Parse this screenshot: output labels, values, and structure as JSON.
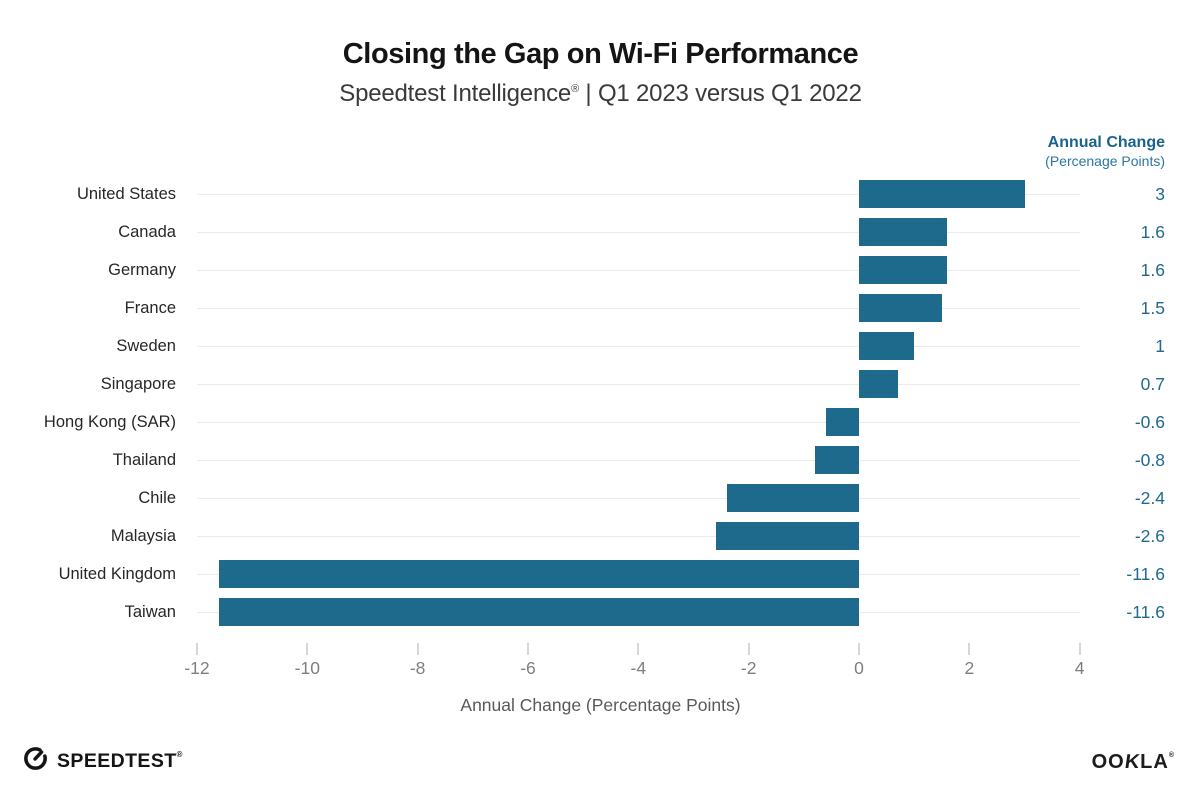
{
  "title": "Closing the Gap on Wi-Fi Performance",
  "subtitle": {
    "brand": "Speedtest Intelligence",
    "reg": "®",
    "rest": " | Q1 2023 versus Q1 2022"
  },
  "right_header": {
    "line1": "Annual Change",
    "line2": "(Percenage Points)"
  },
  "footer": {
    "speedtest_label": "SPEEDTEST",
    "speedtest_mark": "®",
    "ookla_o1": "OO",
    "ookla_k": "K",
    "ookla_la": "LA",
    "ookla_mark": "®"
  },
  "colors": {
    "bar": "#1e6a8c",
    "value_text": "#20698f",
    "header_teal": "#19648e",
    "grid": "#ebebee",
    "tick": "#d6d6da",
    "tick_text": "#7d7e80",
    "country_text": "#26272a"
  },
  "chart_data": {
    "type": "bar",
    "orientation": "horizontal",
    "title": "Closing the Gap on Wi-Fi Performance",
    "subtitle": "Speedtest Intelligence® | Q1 2023 versus Q1 2022",
    "categories": [
      "United States",
      "Canada",
      "Germany",
      "France",
      "Sweden",
      "Singapore",
      "Hong Kong (SAR)",
      "Thailand",
      "Chile",
      "Malaysia",
      "United Kingdom",
      "Taiwan"
    ],
    "values": [
      3,
      1.6,
      1.6,
      1.5,
      1,
      0.7,
      -0.6,
      -0.8,
      -2.4,
      -2.6,
      -11.6,
      -11.6
    ],
    "value_labels": [
      "3",
      "1.6",
      "1.6",
      "1.5",
      "1",
      "0.7",
      "-0.6",
      "-0.8",
      "-2.4",
      "-2.6",
      "-11.6",
      "-11.6"
    ],
    "xlabel": "Annual Change (Percentage Points)",
    "value_column_header": "Annual Change (Percenage Points)",
    "xticks": [
      -12,
      -10,
      -8,
      -6,
      -4,
      -2,
      0,
      2,
      4
    ],
    "xtick_labels": [
      "-12",
      "-10",
      "-8",
      "-6",
      "-4",
      "-2",
      "0",
      "2",
      "4"
    ],
    "xlim": [
      -12,
      4
    ],
    "grid": "horizontal-row-lines",
    "legend": "none",
    "bar_color": "#1e6a8c"
  }
}
